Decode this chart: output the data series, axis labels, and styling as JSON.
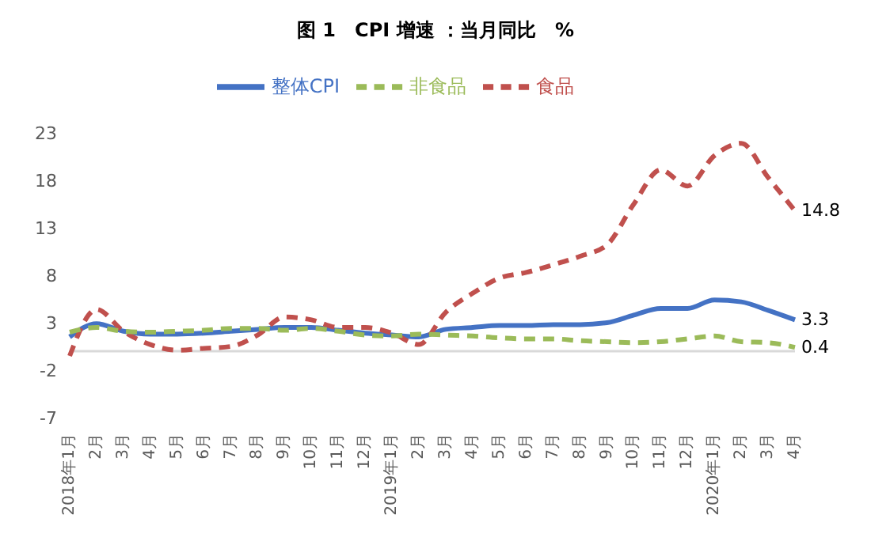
{
  "chart_data": {
    "type": "line",
    "title": "图 1　CPI 增速 ：当月同比　%",
    "categories": [
      "2018年1月",
      "2月",
      "3月",
      "4月",
      "5月",
      "6月",
      "7月",
      "8月",
      "9月",
      "10月",
      "11月",
      "12月",
      "2019年1月",
      "2月",
      "3月",
      "4月",
      "5月",
      "6月",
      "7月",
      "8月",
      "9月",
      "10月",
      "11月",
      "12月",
      "2020年1月",
      "2月",
      "3月",
      "4月"
    ],
    "series": [
      {
        "name": "整体CPI",
        "color": "#4472c4",
        "line_style": "solid",
        "values": [
          1.5,
          2.9,
          2.1,
          1.8,
          1.8,
          1.9,
          2.1,
          2.3,
          2.5,
          2.5,
          2.2,
          1.9,
          1.7,
          1.5,
          2.3,
          2.5,
          2.7,
          2.7,
          2.8,
          2.8,
          3.0,
          3.8,
          4.5,
          4.5,
          5.4,
          5.2,
          4.3,
          3.3
        ],
        "value_labels": [
          null,
          null,
          null,
          null,
          null,
          null,
          null,
          null,
          null,
          null,
          null,
          null,
          null,
          null,
          null,
          null,
          null,
          null,
          null,
          null,
          null,
          null,
          null,
          null,
          null,
          null,
          null,
          "3.3"
        ]
      },
      {
        "name": "食品",
        "color": "#c0504d",
        "line_style": "dashed",
        "values": [
          -0.5,
          4.4,
          2.1,
          0.7,
          0.1,
          0.3,
          0.5,
          1.7,
          3.6,
          3.3,
          2.5,
          2.5,
          1.9,
          0.7,
          4.1,
          6.1,
          7.7,
          8.3,
          9.1,
          10.0,
          11.2,
          15.5,
          19.1,
          17.4,
          20.6,
          21.9,
          18.3,
          14.8
        ],
        "value_labels": [
          null,
          null,
          null,
          null,
          null,
          null,
          null,
          null,
          null,
          null,
          null,
          null,
          null,
          null,
          null,
          null,
          null,
          null,
          null,
          null,
          null,
          null,
          null,
          null,
          null,
          null,
          null,
          "14.8"
        ]
      },
      {
        "name": "非食品",
        "color": "#9bbb59",
        "line_style": "dashed",
        "values": [
          2.0,
          2.5,
          2.1,
          2.0,
          2.1,
          2.2,
          2.4,
          2.4,
          2.2,
          2.4,
          2.1,
          1.7,
          1.6,
          1.8,
          1.7,
          1.6,
          1.4,
          1.3,
          1.3,
          1.1,
          1.0,
          0.9,
          1.0,
          1.3,
          1.6,
          1.0,
          0.9,
          0.4
        ],
        "value_labels": [
          null,
          null,
          null,
          null,
          null,
          null,
          null,
          null,
          null,
          null,
          null,
          null,
          null,
          null,
          null,
          null,
          null,
          null,
          null,
          null,
          null,
          null,
          null,
          null,
          null,
          null,
          null,
          "0.4"
        ]
      }
    ],
    "ylim": [
      -7,
      23
    ],
    "yticks": [
      -7,
      -2,
      3,
      8,
      13,
      18,
      23
    ],
    "grid": false,
    "legend": "top",
    "marker": "none",
    "ref_lines": [
      {
        "axis": "y",
        "value": 0,
        "color": "#d9d9d9"
      }
    ]
  }
}
